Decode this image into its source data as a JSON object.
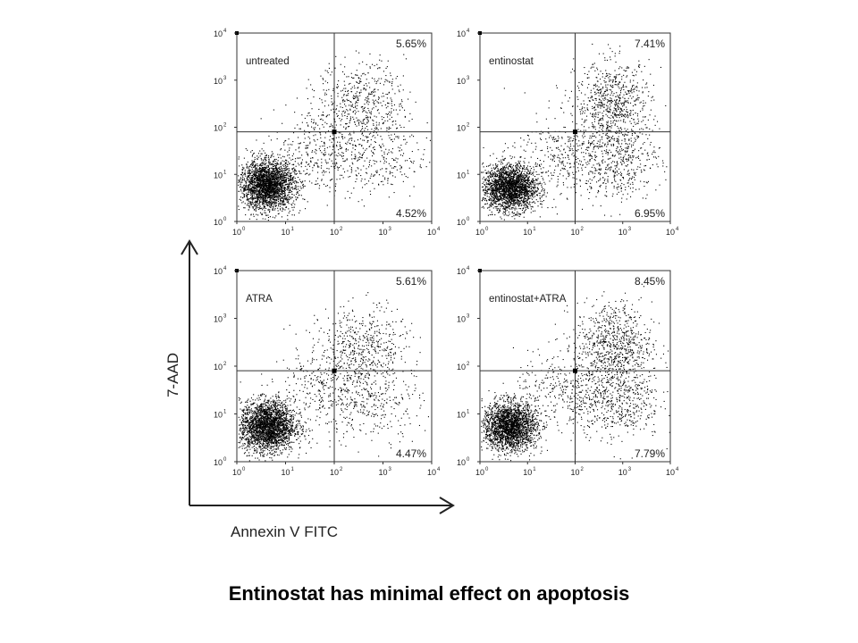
{
  "caption": "Entinostat has minimal effect on apoptosis",
  "axes": {
    "xlabel": "Annexin V FITC",
    "ylabel": "7-AAD"
  },
  "colors": {
    "dots": "#000000",
    "lines": "#333333",
    "background": "#ffffff"
  },
  "chart_data": [
    {
      "type": "scatter",
      "label": "untreated",
      "x_scale": "log",
      "y_scale": "log",
      "xlim": [
        1,
        10000
      ],
      "ylim": [
        1,
        10000
      ],
      "x_ticks": [
        "10",
        "10",
        "10",
        "10",
        "10"
      ],
      "x_tick_exponents": [
        "0",
        "1",
        "2",
        "3",
        "4"
      ],
      "y_ticks": [
        "10",
        "10",
        "10",
        "10",
        "10"
      ],
      "y_tick_exponents": [
        "0",
        "1",
        "2",
        "3",
        "4"
      ],
      "gate": {
        "x": 100,
        "y": 80
      },
      "upper_right": "5.65%",
      "lower_right": "4.52%",
      "populations": [
        {
          "cx_log": 0.62,
          "cy_log": 0.78,
          "sx": 0.28,
          "sy": 0.26,
          "n": 2600
        },
        {
          "cx_log": 2.55,
          "cy_log": 2.55,
          "sx": 0.45,
          "sy": 0.42,
          "n": 520
        },
        {
          "cx_log": 2.8,
          "cy_log": 1.3,
          "sx": 0.55,
          "sy": 0.4,
          "n": 300
        },
        {
          "cx_log": 1.7,
          "cy_log": 1.5,
          "sx": 0.5,
          "sy": 0.45,
          "n": 320
        }
      ]
    },
    {
      "type": "scatter",
      "label": "entinostat",
      "x_scale": "log",
      "y_scale": "log",
      "xlim": [
        1,
        10000
      ],
      "ylim": [
        1,
        10000
      ],
      "x_ticks": [
        "10",
        "10",
        "10",
        "10",
        "10"
      ],
      "x_tick_exponents": [
        "0",
        "1",
        "2",
        "3",
        "4"
      ],
      "y_ticks": [
        "10",
        "10",
        "10",
        "10",
        "10"
      ],
      "y_tick_exponents": [
        "0",
        "1",
        "2",
        "3",
        "4"
      ],
      "gate": {
        "x": 100,
        "y": 80
      },
      "upper_right": "7.41%",
      "lower_right": "6.95%",
      "populations": [
        {
          "cx_log": 0.62,
          "cy_log": 0.72,
          "sx": 0.28,
          "sy": 0.24,
          "n": 2300
        },
        {
          "cx_log": 2.8,
          "cy_log": 2.5,
          "sx": 0.4,
          "sy": 0.45,
          "n": 720
        },
        {
          "cx_log": 2.9,
          "cy_log": 1.3,
          "sx": 0.45,
          "sy": 0.4,
          "n": 440
        },
        {
          "cx_log": 1.8,
          "cy_log": 1.4,
          "sx": 0.55,
          "sy": 0.45,
          "n": 360
        }
      ]
    },
    {
      "type": "scatter",
      "label": "ATRA",
      "x_scale": "log",
      "y_scale": "log",
      "xlim": [
        1,
        10000
      ],
      "ylim": [
        1,
        10000
      ],
      "x_ticks": [
        "10",
        "10",
        "10",
        "10",
        "10"
      ],
      "x_tick_exponents": [
        "0",
        "1",
        "2",
        "3",
        "4"
      ],
      "y_ticks": [
        "10",
        "10",
        "10",
        "10",
        "10"
      ],
      "y_tick_exponents": [
        "0",
        "1",
        "2",
        "3",
        "4"
      ],
      "gate": {
        "x": 100,
        "y": 80
      },
      "upper_right": "5.61%",
      "lower_right": "4.47%",
      "populations": [
        {
          "cx_log": 0.62,
          "cy_log": 0.75,
          "sx": 0.28,
          "sy": 0.26,
          "n": 2600
        },
        {
          "cx_log": 2.6,
          "cy_log": 2.4,
          "sx": 0.45,
          "sy": 0.42,
          "n": 500
        },
        {
          "cx_log": 2.8,
          "cy_log": 1.3,
          "sx": 0.5,
          "sy": 0.4,
          "n": 300
        },
        {
          "cx_log": 1.7,
          "cy_log": 1.5,
          "sx": 0.5,
          "sy": 0.45,
          "n": 320
        }
      ]
    },
    {
      "type": "scatter",
      "label": "entinostat+ATRA",
      "x_scale": "log",
      "y_scale": "log",
      "xlim": [
        1,
        10000
      ],
      "ylim": [
        1,
        10000
      ],
      "x_ticks": [
        "10",
        "10",
        "10",
        "10",
        "10"
      ],
      "x_tick_exponents": [
        "0",
        "1",
        "2",
        "3",
        "4"
      ],
      "y_ticks": [
        "10",
        "10",
        "10",
        "10",
        "10"
      ],
      "y_tick_exponents": [
        "0",
        "1",
        "2",
        "3",
        "4"
      ],
      "gate": {
        "x": 100,
        "y": 80
      },
      "upper_right": "8.45%",
      "lower_right": "7.79%",
      "populations": [
        {
          "cx_log": 0.62,
          "cy_log": 0.75,
          "sx": 0.28,
          "sy": 0.25,
          "n": 2300
        },
        {
          "cx_log": 2.8,
          "cy_log": 2.45,
          "sx": 0.4,
          "sy": 0.45,
          "n": 760
        },
        {
          "cx_log": 2.9,
          "cy_log": 1.3,
          "sx": 0.45,
          "sy": 0.4,
          "n": 480
        },
        {
          "cx_log": 1.8,
          "cy_log": 1.4,
          "sx": 0.55,
          "sy": 0.45,
          "n": 360
        }
      ]
    }
  ]
}
